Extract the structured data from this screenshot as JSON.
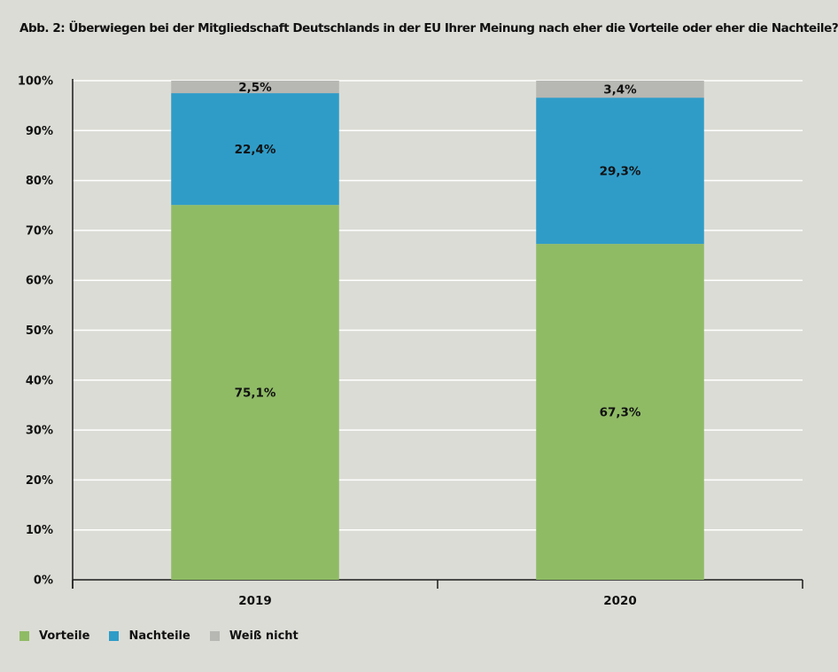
{
  "chart_data": {
    "type": "bar",
    "stacked": true,
    "title": "Abb. 2: Überwiegen bei der Mitgliedschaft Deutschlands in der EU Ihrer Meinung nach eher die Vorteile oder eher die Nachteile?",
    "categories": [
      "2019",
      "2020"
    ],
    "series": [
      {
        "name": "Vorteile",
        "color": "#8fbb65",
        "values": [
          75.1,
          67.3
        ],
        "labels": [
          "75,1%",
          "67,3%"
        ]
      },
      {
        "name": "Nachteile",
        "color": "#2f9cc8",
        "values": [
          22.4,
          29.3
        ],
        "labels": [
          "22,4%",
          "29,3%"
        ]
      },
      {
        "name": "Weiß nicht",
        "color": "#b7b7b3",
        "values": [
          2.5,
          3.4
        ],
        "labels": [
          "2,5%",
          "3,4%"
        ]
      }
    ],
    "yticks": [
      "0%",
      "10%",
      "20%",
      "30%",
      "40%",
      "50%",
      "60%",
      "70%",
      "80%",
      "90%",
      "100%"
    ],
    "ylim": [
      0,
      100
    ],
    "grid": true,
    "legend_position": "bottom-left"
  }
}
